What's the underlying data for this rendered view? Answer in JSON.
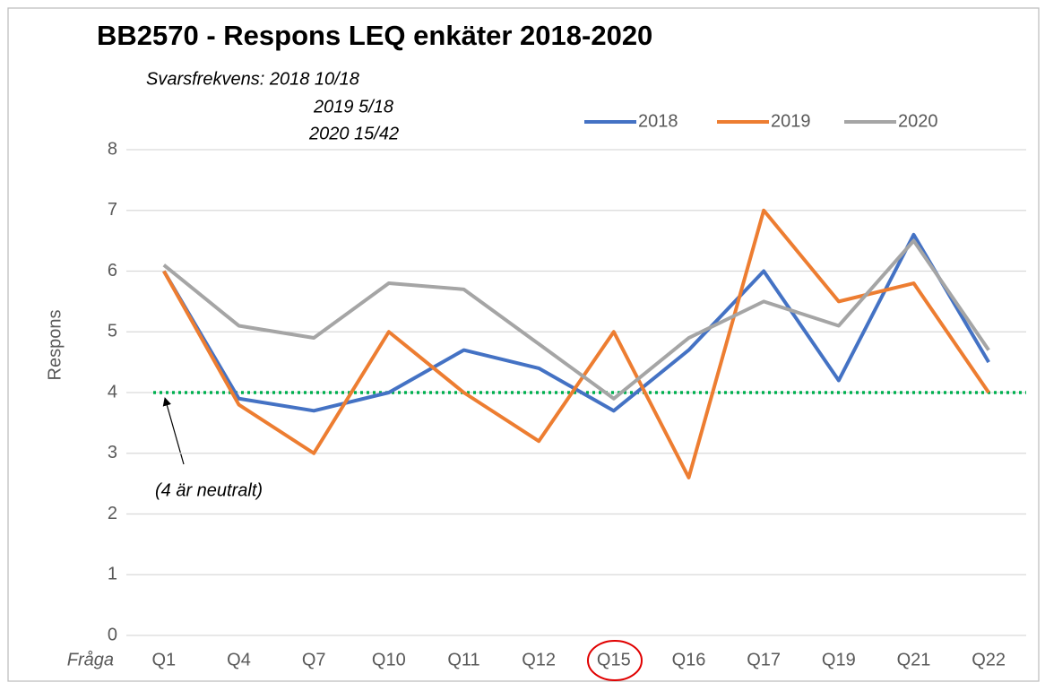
{
  "chart_data": {
    "type": "line",
    "title": "BB2570 - Respons LEQ enkäter 2018-2020",
    "subtitle": [
      "Svarsfrekvens: 2018 10/18",
      "2019  5/18",
      "2020 15/42"
    ],
    "y_label": "Respons",
    "x_label": "Fråga",
    "annotation": "(4 är neutralt)",
    "reference_line": {
      "value": 4,
      "color": "#00b050"
    },
    "categories": [
      "Q1",
      "Q4",
      "Q7",
      "Q10",
      "Q11",
      "Q12",
      "Q15",
      "Q16",
      "Q17",
      "Q19",
      "Q21",
      "Q22"
    ],
    "series": [
      {
        "name": "2018",
        "color": "#4472c4",
        "values": [
          6.0,
          3.9,
          3.7,
          4.0,
          4.7,
          4.4,
          3.7,
          4.7,
          6.0,
          4.2,
          6.6,
          4.5
        ]
      },
      {
        "name": "2019",
        "color": "#ed7d31",
        "values": [
          6.0,
          3.8,
          3.0,
          5.0,
          4.0,
          3.2,
          5.0,
          2.6,
          7.0,
          5.5,
          5.8,
          4.0
        ]
      },
      {
        "name": "2020",
        "color": "#a5a5a5",
        "values": [
          6.1,
          5.1,
          4.9,
          5.8,
          5.7,
          4.8,
          3.9,
          4.9,
          5.5,
          5.1,
          6.5,
          4.7
        ]
      }
    ],
    "ylim": [
      0,
      8
    ],
    "yticks": [
      0,
      1,
      2,
      3,
      4,
      5,
      6,
      7,
      8
    ],
    "grid": true,
    "legend": "top"
  }
}
